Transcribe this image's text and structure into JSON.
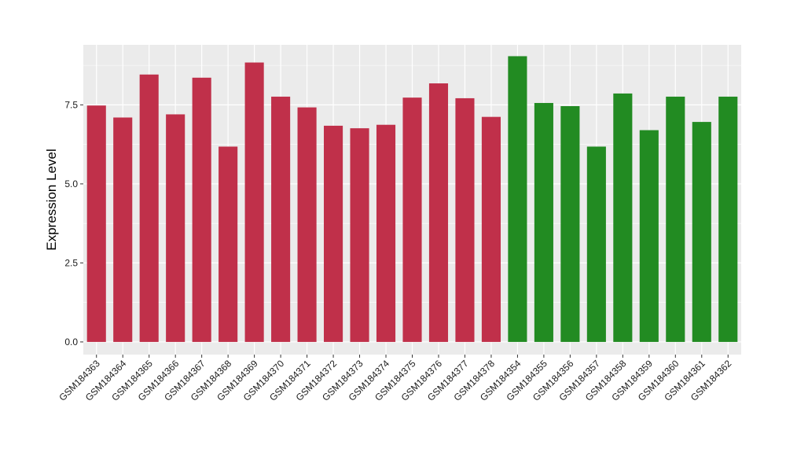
{
  "chart_data": {
    "type": "bar",
    "title": "",
    "xlabel": "",
    "ylabel": "Expression Level",
    "ylim": [
      -0.4,
      9.4
    ],
    "yticks": [
      0.0,
      2.5,
      5.0,
      7.5
    ],
    "ytick_labels": [
      "0.0",
      "2.5",
      "5.0",
      "7.5"
    ],
    "grid": true,
    "legend": "none",
    "colors": {
      "group_1": "#c0304a",
      "group_2": "#228b22",
      "panel_background": "#ebebeb",
      "gridline": "#ffffff"
    },
    "categories": [
      "GSM184363",
      "GSM184364",
      "GSM184365",
      "GSM184366",
      "GSM184367",
      "GSM184368",
      "GSM184369",
      "GSM184370",
      "GSM184371",
      "GSM184372",
      "GSM184373",
      "GSM184374",
      "GSM184375",
      "GSM184376",
      "GSM184377",
      "GSM184378",
      "GSM184354",
      "GSM184355",
      "GSM184356",
      "GSM184357",
      "GSM184358",
      "GSM184359",
      "GSM184360",
      "GSM184361",
      "GSM184362"
    ],
    "values": [
      7.48,
      7.1,
      8.46,
      7.2,
      8.36,
      6.18,
      8.84,
      7.76,
      7.42,
      6.84,
      6.76,
      6.87,
      7.73,
      8.18,
      7.71,
      7.12,
      9.04,
      7.56,
      7.46,
      6.18,
      7.86,
      6.7,
      7.76,
      6.96,
      7.76
    ],
    "groups": [
      "group_1",
      "group_1",
      "group_1",
      "group_1",
      "group_1",
      "group_1",
      "group_1",
      "group_1",
      "group_1",
      "group_1",
      "group_1",
      "group_1",
      "group_1",
      "group_1",
      "group_1",
      "group_1",
      "group_2",
      "group_2",
      "group_2",
      "group_2",
      "group_2",
      "group_2",
      "group_2",
      "group_2",
      "group_2"
    ]
  }
}
